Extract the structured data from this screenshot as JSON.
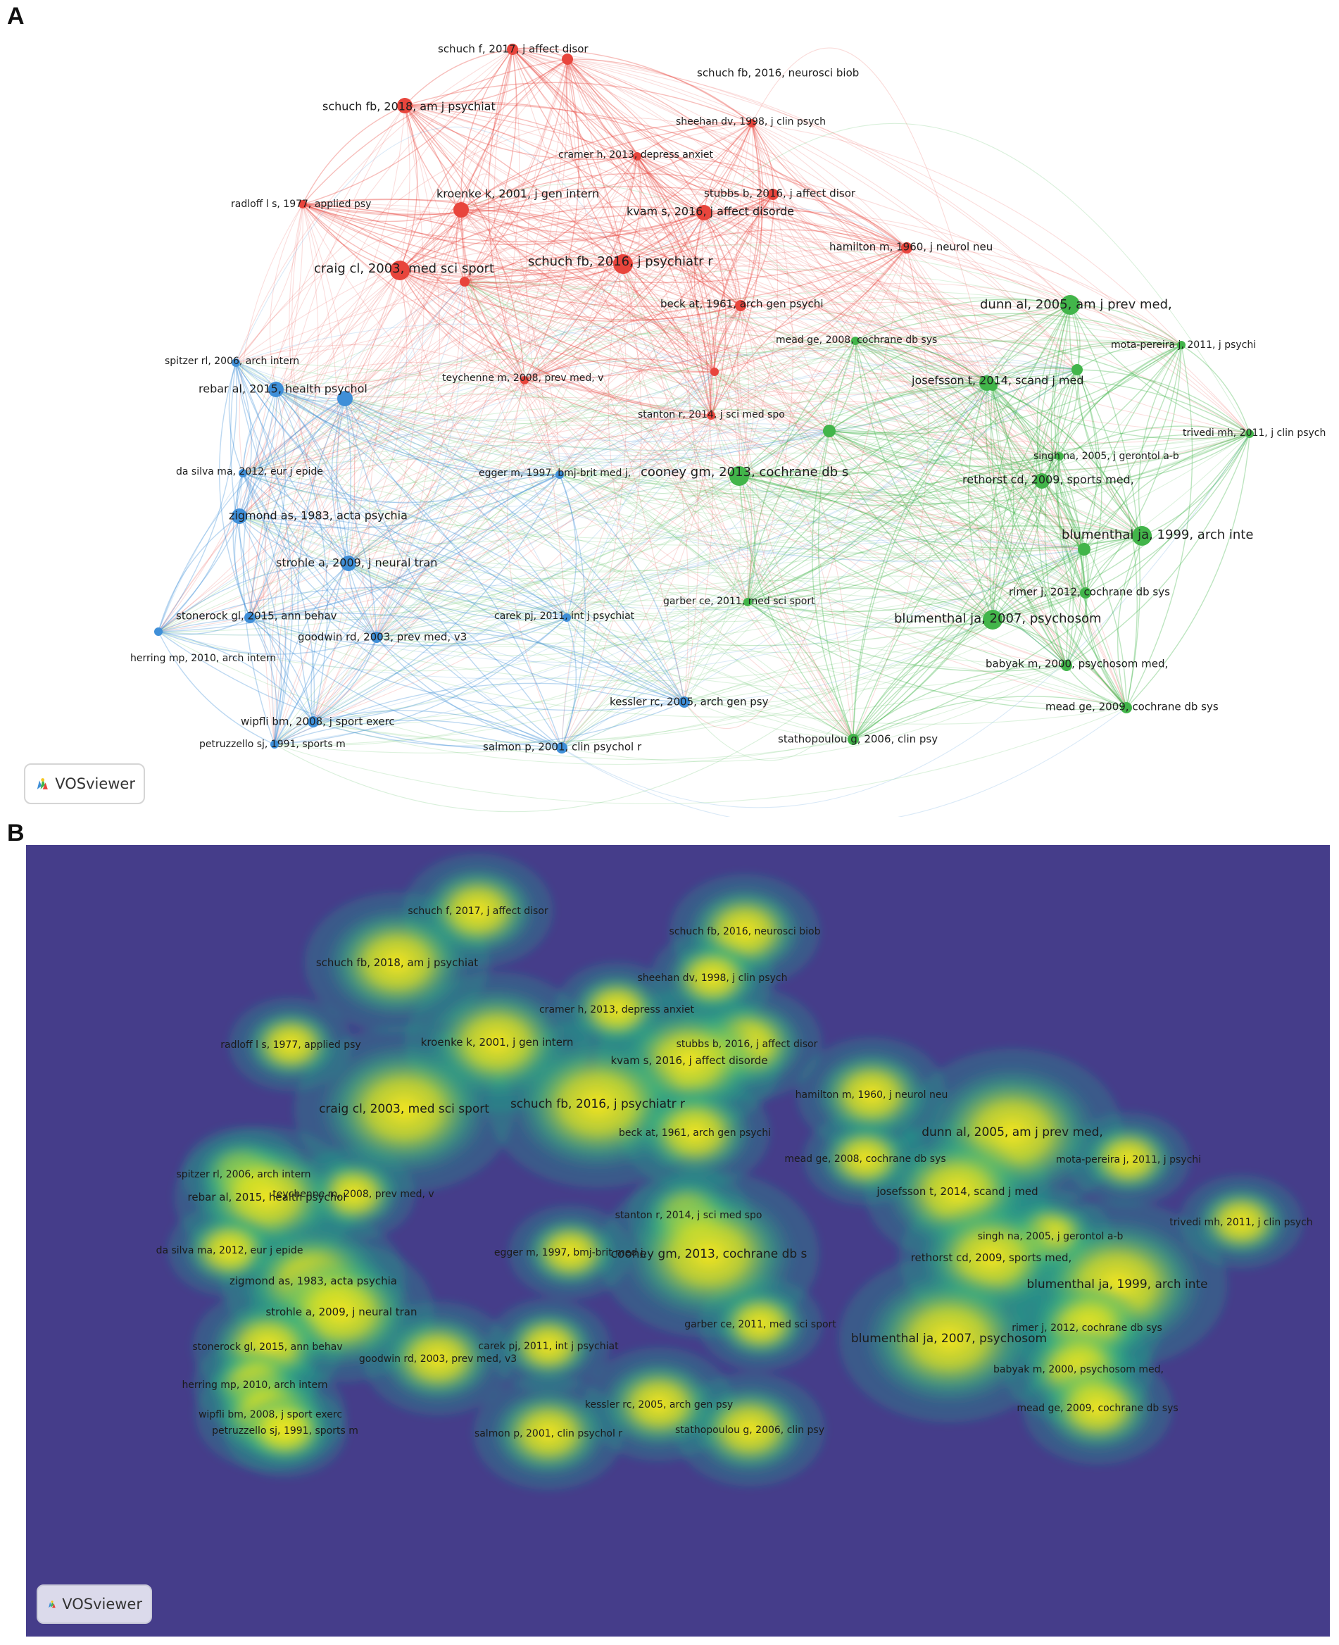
{
  "panel_a_letter": "A",
  "panel_b_letter": "B",
  "logo_text": "VOSviewer",
  "colors": {
    "cluster_red": "#e8453c",
    "cluster_green": "#42b54a",
    "cluster_blue": "#3f8fd8",
    "density_low": "#453d8a",
    "density_mid": "#1fa58a",
    "density_high": "#f6e61f"
  },
  "nodes": [
    {
      "label": "schuch f, 2017, j affect disor",
      "cluster": "red",
      "weight": 2
    },
    {
      "label": "schuch fb, 2016, neurosci biob",
      "cluster": "red",
      "weight": 2
    },
    {
      "label": "schuch fb, 2018, am j psychiat",
      "cluster": "red",
      "weight": 3
    },
    {
      "label": "sheehan dv, 1998, j clin psych",
      "cluster": "red",
      "weight": 1
    },
    {
      "label": "cramer h, 2013, depress anxiet",
      "cluster": "red",
      "weight": 1
    },
    {
      "label": "radloff l s, 1977, applied psy",
      "cluster": "red",
      "weight": 1
    },
    {
      "label": "kroenke k, 2001, j gen intern",
      "cluster": "red",
      "weight": 3
    },
    {
      "label": "stubbs b, 2016, j affect disor",
      "cluster": "red",
      "weight": 2
    },
    {
      "label": "kvam s, 2016, j affect disorde",
      "cluster": "red",
      "weight": 3
    },
    {
      "label": "hamilton m, 1960, j neurol neu",
      "cluster": "red",
      "weight": 2
    },
    {
      "label": "schuch fb, 2016, j psychiatr r",
      "cluster": "red",
      "weight": 4
    },
    {
      "label": "craig cl, 2003, med sci sport",
      "cluster": "red",
      "weight": 4
    },
    {
      "label": "beck at, 1961, arch gen psychi",
      "cluster": "red",
      "weight": 2
    },
    {
      "label": "teychenne m, 2008, prev med, v",
      "cluster": "red",
      "weight": 1
    },
    {
      "label": "stanton r, 2014, j sci med spo",
      "cluster": "red",
      "weight": 1
    },
    {
      "label": "dunn al, 2005, am j prev med,",
      "cluster": "green",
      "weight": 4
    },
    {
      "label": "mead ge, 2008, cochrane db sys",
      "cluster": "green",
      "weight": 1
    },
    {
      "label": "mota-pereira j, 2011, j psychi",
      "cluster": "green",
      "weight": 1
    },
    {
      "label": "josefsson t, 2014, scand j med",
      "cluster": "green",
      "weight": 3
    },
    {
      "label": "trivedi mh, 2011, j clin psych",
      "cluster": "green",
      "weight": 1
    },
    {
      "label": "cooney gm, 2013, cochrane db s",
      "cluster": "green",
      "weight": 4
    },
    {
      "label": "singh na, 2005, j gerontol a-b",
      "cluster": "green",
      "weight": 1
    },
    {
      "label": "rethorst cd, 2009, sports med,",
      "cluster": "green",
      "weight": 3
    },
    {
      "label": "blumenthal ja, 1999, arch inte",
      "cluster": "green",
      "weight": 4
    },
    {
      "label": "rimer j, 2012, cochrane db sys",
      "cluster": "green",
      "weight": 2
    },
    {
      "label": "garber ce, 2011, med sci sport",
      "cluster": "green",
      "weight": 1
    },
    {
      "label": "blumenthal ja, 2007, psychosom",
      "cluster": "green",
      "weight": 4
    },
    {
      "label": "babyak m, 2000, psychosom med,",
      "cluster": "green",
      "weight": 2
    },
    {
      "label": "mead ge, 2009, cochrane db sys",
      "cluster": "green",
      "weight": 2
    },
    {
      "label": "stathopoulou g, 2006, clin psy",
      "cluster": "green",
      "weight": 2
    },
    {
      "label": "spitzer rl, 2006, arch intern",
      "cluster": "blue",
      "weight": 1
    },
    {
      "label": "rebar al, 2015, health psychol",
      "cluster": "blue",
      "weight": 3
    },
    {
      "label": "da silva ma, 2012, eur j epide",
      "cluster": "blue",
      "weight": 1
    },
    {
      "label": "egger m, 1997, bmj-brit med j,",
      "cluster": "blue",
      "weight": 1
    },
    {
      "label": "zigmond as, 1983, acta psychia",
      "cluster": "blue",
      "weight": 3
    },
    {
      "label": "strohle a, 2009, j neural tran",
      "cluster": "blue",
      "weight": 3
    },
    {
      "label": "stonerock gl, 2015, ann behav",
      "cluster": "blue",
      "weight": 2
    },
    {
      "label": "carek pj, 2011, int j psychiat",
      "cluster": "blue",
      "weight": 1
    },
    {
      "label": "goodwin rd, 2003, prev med, v3",
      "cluster": "blue",
      "weight": 2
    },
    {
      "label": "herring mp, 2010, arch intern",
      "cluster": "blue",
      "weight": 1
    },
    {
      "label": "kessler rc, 2005, arch gen psy",
      "cluster": "blue",
      "weight": 2
    },
    {
      "label": "wipfli bm, 2008, j sport exerc",
      "cluster": "blue",
      "weight": 2
    },
    {
      "label": "petruzzello sj, 1991, sports m",
      "cluster": "blue",
      "weight": 1
    },
    {
      "label": "salmon p, 2001, clin psychol r",
      "cluster": "blue",
      "weight": 2
    }
  ]
}
